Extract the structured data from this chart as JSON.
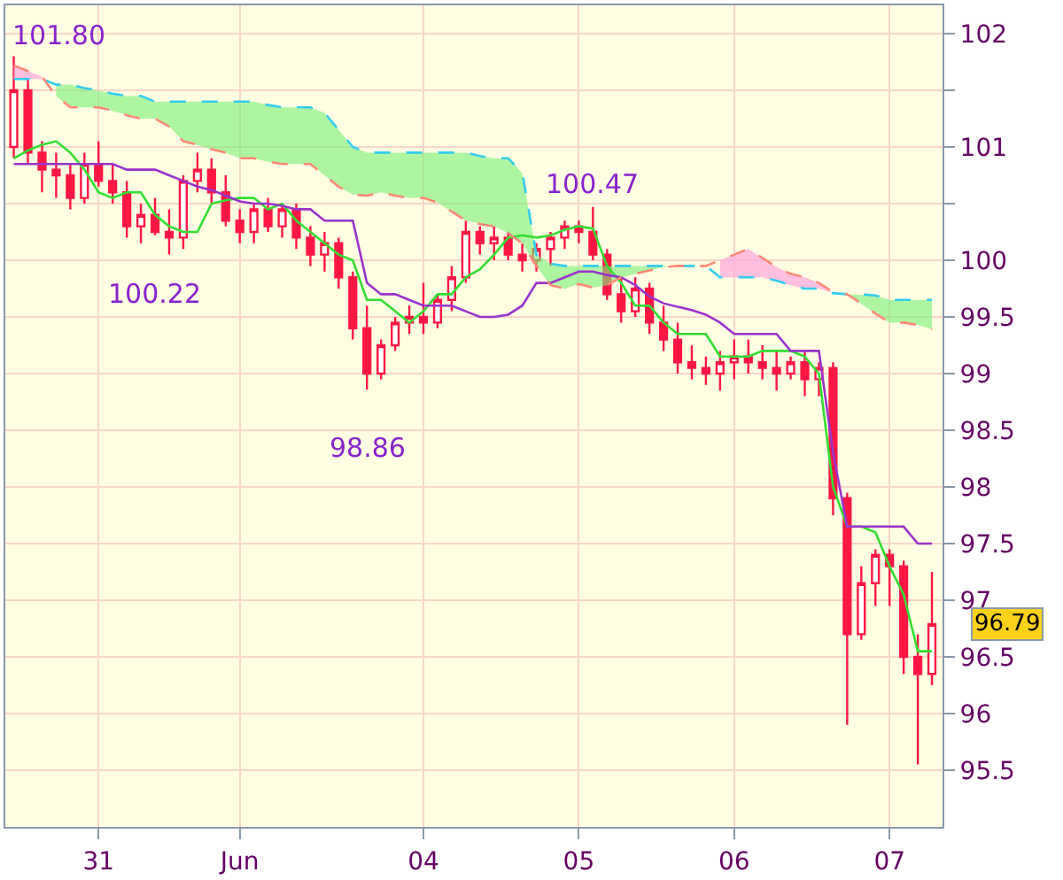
{
  "chart_data": {
    "type": "candlestick",
    "categories": [
      null,
      null,
      null,
      null,
      null,
      null,
      "31",
      null,
      null,
      null,
      null,
      null,
      null,
      null,
      null,
      null,
      "Jun",
      null,
      null,
      null,
      null,
      null,
      null,
      null,
      null,
      null,
      null,
      null,
      null,
      "04",
      null,
      null,
      null,
      null,
      null,
      null,
      null,
      null,
      null,
      null,
      "05",
      null,
      null,
      null,
      null,
      null,
      null,
      null,
      null,
      null,
      null,
      "06",
      null,
      null,
      null,
      null,
      null,
      null,
      null,
      null,
      null,
      null,
      "07",
      null,
      null,
      null
    ],
    "ohlc": [
      [
        101.0,
        101.8,
        100.9,
        101.5
      ],
      [
        101.5,
        101.6,
        100.85,
        100.95
      ],
      [
        100.95,
        101.05,
        100.6,
        100.8
      ],
      [
        100.8,
        100.95,
        100.55,
        100.75
      ],
      [
        100.75,
        100.85,
        100.45,
        100.55
      ],
      [
        100.55,
        100.95,
        100.5,
        100.85
      ],
      [
        100.85,
        101.05,
        100.65,
        100.7
      ],
      [
        100.7,
        100.85,
        100.5,
        100.6
      ],
      [
        100.6,
        100.7,
        100.2,
        100.3
      ],
      [
        100.3,
        100.5,
        100.15,
        100.4
      ],
      [
        100.4,
        100.55,
        100.22,
        100.25
      ],
      [
        100.25,
        100.45,
        100.05,
        100.2
      ],
      [
        100.2,
        100.75,
        100.1,
        100.7
      ],
      [
        100.7,
        100.95,
        100.6,
        100.8
      ],
      [
        100.8,
        100.9,
        100.5,
        100.6
      ],
      [
        100.6,
        100.75,
        100.3,
        100.35
      ],
      [
        100.35,
        100.45,
        100.15,
        100.25
      ],
      [
        100.25,
        100.5,
        100.15,
        100.45
      ],
      [
        100.45,
        100.55,
        100.25,
        100.3
      ],
      [
        100.3,
        100.5,
        100.2,
        100.45
      ],
      [
        100.45,
        100.5,
        100.1,
        100.2
      ],
      [
        100.2,
        100.3,
        99.95,
        100.05
      ],
      [
        100.05,
        100.25,
        99.9,
        100.15
      ],
      [
        100.15,
        100.2,
        99.75,
        99.85
      ],
      [
        99.85,
        99.9,
        99.3,
        99.4
      ],
      [
        99.4,
        99.6,
        98.86,
        99.0
      ],
      [
        99.0,
        99.3,
        98.95,
        99.25
      ],
      [
        99.25,
        99.5,
        99.2,
        99.45
      ],
      [
        99.45,
        99.6,
        99.35,
        99.5
      ],
      [
        99.5,
        99.8,
        99.35,
        99.45
      ],
      [
        99.45,
        99.7,
        99.4,
        99.65
      ],
      [
        99.65,
        99.95,
        99.55,
        99.85
      ],
      [
        99.85,
        100.35,
        99.8,
        100.25
      ],
      [
        100.25,
        100.3,
        100.05,
        100.15
      ],
      [
        100.15,
        100.3,
        100.0,
        100.2
      ],
      [
        100.2,
        100.25,
        100.0,
        100.05
      ],
      [
        100.05,
        100.15,
        99.9,
        100.0
      ],
      [
        100.0,
        100.15,
        99.9,
        100.1
      ],
      [
        100.1,
        100.25,
        99.95,
        100.2
      ],
      [
        100.2,
        100.35,
        100.1,
        100.3
      ],
      [
        100.3,
        100.35,
        100.15,
        100.25
      ],
      [
        100.25,
        100.47,
        100.0,
        100.05
      ],
      [
        100.05,
        100.1,
        99.65,
        99.7
      ],
      [
        99.7,
        99.85,
        99.45,
        99.55
      ],
      [
        99.55,
        99.85,
        99.5,
        99.75
      ],
      [
        99.75,
        99.8,
        99.35,
        99.45
      ],
      [
        99.45,
        99.6,
        99.2,
        99.3
      ],
      [
        99.3,
        99.45,
        99.0,
        99.1
      ],
      [
        99.1,
        99.25,
        98.95,
        99.05
      ],
      [
        99.05,
        99.15,
        98.9,
        99.0
      ],
      [
        99.0,
        99.2,
        98.85,
        99.1
      ],
      [
        99.1,
        99.3,
        98.95,
        99.15
      ],
      [
        99.15,
        99.3,
        99.0,
        99.1
      ],
      [
        99.1,
        99.25,
        98.95,
        99.05
      ],
      [
        99.05,
        99.2,
        98.85,
        99.0
      ],
      [
        99.0,
        99.15,
        98.95,
        99.1
      ],
      [
        99.1,
        99.2,
        98.8,
        98.95
      ],
      [
        98.95,
        99.1,
        98.8,
        99.05
      ],
      [
        99.05,
        99.1,
        97.75,
        97.9
      ],
      [
        97.9,
        97.95,
        95.9,
        96.7
      ],
      [
        96.7,
        97.3,
        96.65,
        97.15
      ],
      [
        97.15,
        97.45,
        96.95,
        97.4
      ],
      [
        97.4,
        97.45,
        96.95,
        97.3
      ],
      [
        97.3,
        97.35,
        96.35,
        96.5
      ],
      [
        96.5,
        96.7,
        95.55,
        96.35
      ],
      [
        96.35,
        97.25,
        96.25,
        96.79
      ]
    ],
    "color": "#ff1744",
    "series": [
      {
        "type": "line",
        "color": "#33dd33",
        "line_style": "solid",
        "values": [
          100.9,
          100.97,
          101.02,
          101.05,
          100.95,
          100.8,
          100.6,
          100.55,
          100.6,
          100.6,
          100.4,
          100.3,
          100.25,
          100.25,
          100.5,
          100.53,
          100.55,
          100.55,
          100.45,
          100.5,
          100.35,
          100.25,
          100.15,
          100.05,
          100.0,
          99.65,
          99.65,
          99.55,
          99.45,
          99.55,
          99.7,
          99.7,
          99.85,
          99.92,
          100.05,
          100.2,
          100.22,
          100.2,
          100.22,
          100.27,
          100.3,
          100.28,
          99.95,
          99.8,
          99.6,
          99.6,
          99.45,
          99.35,
          99.35,
          99.35,
          99.15,
          99.15,
          99.15,
          99.2,
          99.2,
          99.2,
          99.15,
          99.0,
          98.0,
          97.65,
          97.65,
          97.6,
          97.3,
          97.05,
          96.55,
          96.55
        ]
      },
      {
        "type": "line",
        "color": "#9933cc",
        "line_style": "solid",
        "values": [
          100.85,
          100.85,
          100.85,
          100.85,
          100.85,
          100.85,
          100.85,
          100.85,
          100.8,
          100.8,
          100.8,
          100.75,
          100.7,
          100.65,
          100.62,
          100.57,
          100.52,
          100.5,
          100.5,
          100.48,
          100.45,
          100.45,
          100.35,
          100.35,
          100.35,
          99.8,
          99.7,
          99.7,
          99.65,
          99.6,
          99.6,
          99.6,
          99.55,
          99.5,
          99.5,
          99.52,
          99.6,
          99.8,
          99.8,
          99.85,
          99.9,
          99.9,
          99.87,
          99.85,
          99.78,
          99.68,
          99.62,
          99.59,
          99.56,
          99.52,
          99.45,
          99.35,
          99.35,
          99.35,
          99.35,
          99.2,
          99.2,
          99.2,
          98.3,
          97.65,
          97.65,
          97.65,
          97.65,
          97.65,
          97.5,
          97.5
        ]
      },
      {
        "type": "line",
        "color": "#33ccee",
        "line_style": "dashed",
        "values": [
          101.6,
          101.6,
          101.6,
          101.55,
          101.55,
          101.52,
          101.5,
          101.47,
          101.45,
          101.45,
          101.4,
          101.4,
          101.4,
          101.4,
          101.4,
          101.4,
          101.4,
          101.4,
          101.37,
          101.35,
          101.35,
          101.35,
          101.3,
          101.15,
          101.0,
          100.95,
          100.95,
          100.95,
          100.95,
          100.95,
          100.95,
          100.95,
          100.95,
          100.92,
          100.9,
          100.9,
          100.77,
          100.05,
          99.97,
          99.95,
          99.95,
          99.95,
          99.95,
          99.95,
          99.95,
          99.95,
          99.95,
          99.95,
          99.95,
          99.95,
          99.85,
          99.85,
          99.85,
          99.85,
          99.82,
          99.78,
          99.75,
          99.75,
          99.71,
          99.7,
          99.7,
          99.69,
          99.65,
          99.65,
          99.65,
          99.65
        ],
        "lower": [
          null,
          null,
          null,
          101.45,
          101.35,
          101.35,
          101.35,
          101.32,
          101.28,
          101.25,
          101.25,
          101.18,
          101.05,
          101.02,
          100.98,
          100.95,
          100.9,
          100.9,
          100.87,
          100.85,
          100.85,
          100.85,
          100.75,
          100.65,
          100.58,
          100.57,
          100.6,
          100.57,
          100.55,
          100.55,
          100.51,
          100.43,
          100.35,
          100.32,
          100.3,
          100.24,
          100.15,
          99.95,
          99.78,
          99.75,
          99.79,
          99.76,
          99.78,
          99.85,
          99.88,
          99.91,
          99.94,
          99.95,
          99.95,
          99.95,
          null,
          null,
          null,
          null,
          null,
          null,
          null,
          null,
          null,
          99.7,
          99.62,
          99.53,
          99.45,
          99.45,
          99.43,
          99.39
        ],
        "upper": [
          null,
          null,
          null,
          101.55,
          101.55,
          101.52,
          101.5,
          101.47,
          101.45,
          101.45,
          101.4,
          101.4,
          101.4,
          101.4,
          101.4,
          101.4,
          101.4,
          101.4,
          101.37,
          101.35,
          101.35,
          101.35,
          101.3,
          101.15,
          101.0,
          100.95,
          100.95,
          100.95,
          100.95,
          100.95,
          100.95,
          100.95,
          100.95,
          100.92,
          100.9,
          100.9,
          100.77,
          100.05,
          99.97,
          99.95,
          99.95,
          99.95,
          99.95,
          99.95,
          99.95,
          99.95,
          99.95,
          99.95,
          99.95,
          99.95,
          null,
          null,
          null,
          null,
          null,
          null,
          null,
          null,
          null,
          99.7,
          99.7,
          99.69,
          99.65,
          99.65,
          99.65,
          99.65
        ]
      },
      {
        "type": "line",
        "color": "#ff8877",
        "line_style": "dashed",
        "values": [
          101.72,
          101.67,
          101.62,
          101.45,
          101.35,
          101.35,
          101.35,
          101.32,
          101.28,
          101.25,
          101.25,
          101.18,
          101.05,
          101.02,
          100.98,
          100.95,
          100.9,
          100.9,
          100.87,
          100.85,
          100.85,
          100.85,
          100.75,
          100.65,
          100.58,
          100.57,
          100.6,
          100.57,
          100.55,
          100.55,
          100.51,
          100.43,
          100.35,
          100.32,
          100.3,
          100.24,
          100.15,
          99.95,
          99.78,
          99.75,
          99.79,
          99.76,
          99.78,
          99.85,
          99.88,
          99.91,
          99.94,
          99.95,
          99.95,
          99.95,
          100.0,
          100.05,
          100.1,
          100.02,
          99.94,
          99.88,
          99.85,
          99.8,
          99.72,
          99.7,
          99.62,
          99.53,
          99.45,
          99.45,
          99.43,
          99.39
        ],
        "lower": [
          101.6,
          101.6,
          101.6,
          null,
          null,
          null,
          null,
          null,
          null,
          null,
          null,
          null,
          null,
          null,
          null,
          null,
          null,
          null,
          null,
          null,
          null,
          null,
          null,
          null,
          null,
          null,
          null,
          null,
          null,
          null,
          null,
          null,
          null,
          null,
          null,
          null,
          null,
          null,
          null,
          null,
          null,
          null,
          null,
          null,
          null,
          null,
          null,
          null,
          null,
          null,
          99.85,
          99.85,
          99.85,
          99.85,
          99.82,
          99.78,
          99.75,
          99.75,
          99.71,
          null,
          null,
          null,
          null,
          null,
          null,
          null
        ],
        "upper": [
          101.72,
          101.67,
          101.62,
          null,
          null,
          null,
          null,
          null,
          null,
          null,
          null,
          null,
          null,
          null,
          null,
          null,
          null,
          null,
          null,
          null,
          null,
          null,
          null,
          null,
          null,
          null,
          null,
          null,
          null,
          null,
          null,
          null,
          null,
          null,
          null,
          null,
          null,
          null,
          null,
          null,
          null,
          null,
          null,
          null,
          null,
          null,
          null,
          null,
          null,
          null,
          100.0,
          100.05,
          100.1,
          100.02,
          99.94,
          99.88,
          99.85,
          99.8,
          99.72,
          null,
          null,
          null,
          null,
          null,
          null,
          null
        ]
      }
    ],
    "ylim": [
      95.0,
      102.25
    ],
    "yticks": [
      95.5,
      96,
      96.5,
      97,
      97.5,
      98,
      98.5,
      99,
      99.5,
      100,
      {
        "value": 100.5,
        "label": null
      },
      101,
      {
        "value": 101.5,
        "label": null
      },
      102
    ],
    "grid": true,
    "annotations": [
      "101.80",
      {
        "text": "100.22",
        "y": 100.22
      },
      {
        "text": "98.86",
        "y": 98.86
      },
      {
        "text": "100.47",
        "y": 100.47
      },
      "96.79"
    ]
  }
}
